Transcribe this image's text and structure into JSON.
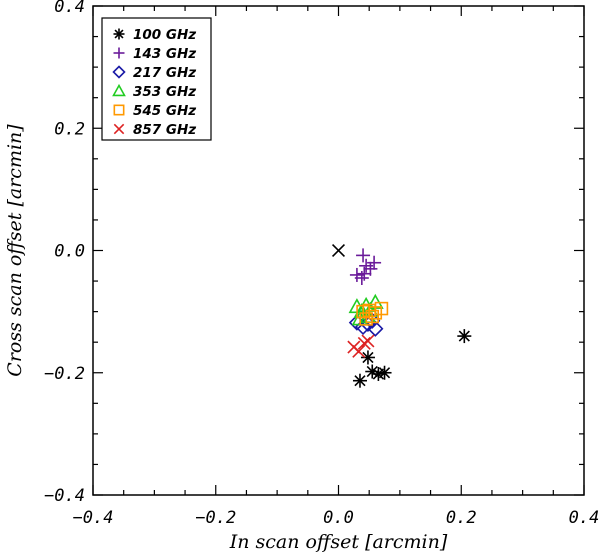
{
  "chart_data": {
    "type": "scatter",
    "title": "",
    "xlabel": "In scan offset [arcmin]",
    "ylabel": "Cross scan offset [arcmin]",
    "xlim": [
      -0.4,
      0.4
    ],
    "ylim": [
      -0.4,
      0.4
    ],
    "xticks": [
      -0.4,
      -0.2,
      0.0,
      0.2,
      0.4
    ],
    "yticks": [
      -0.4,
      -0.2,
      0.0,
      0.2,
      0.4
    ],
    "xtick_labels": [
      "−0.4",
      "−0.2",
      "0.0",
      "0.2",
      "0.4"
    ],
    "ytick_labels": [
      "−0.4",
      "−0.2",
      "0.0",
      "0.2",
      "0.4"
    ],
    "grid": false,
    "legend_position": "top-left",
    "origin_marker": {
      "symbol": "x",
      "color": "#000000",
      "x": 0.0,
      "y": 0.0
    },
    "series": [
      {
        "name": "100 GHz",
        "symbol": "asterisk",
        "color": "#000000",
        "points": [
          [
            0.035,
            -0.213
          ],
          [
            0.048,
            -0.175
          ],
          [
            0.055,
            -0.198
          ],
          [
            0.065,
            -0.202
          ],
          [
            0.075,
            -0.2
          ],
          [
            0.205,
            -0.14
          ]
        ]
      },
      {
        "name": "143 GHz",
        "symbol": "plus",
        "color": "#6a1b9a",
        "points": [
          [
            0.04,
            -0.008
          ],
          [
            0.045,
            -0.025
          ],
          [
            0.052,
            -0.03
          ],
          [
            0.058,
            -0.02
          ],
          [
            0.03,
            -0.04
          ],
          [
            0.038,
            -0.045
          ],
          [
            0.042,
            -0.038
          ]
        ]
      },
      {
        "name": "217 GHz",
        "symbol": "diamond",
        "color": "#1a1aa6",
        "points": [
          [
            0.03,
            -0.118
          ],
          [
            0.04,
            -0.125
          ],
          [
            0.048,
            -0.12
          ],
          [
            0.055,
            -0.115
          ],
          [
            0.06,
            -0.128
          ]
        ]
      },
      {
        "name": "353 GHz",
        "symbol": "triangle",
        "color": "#22cc22",
        "points": [
          [
            0.03,
            -0.092
          ],
          [
            0.038,
            -0.1
          ],
          [
            0.045,
            -0.09
          ],
          [
            0.052,
            -0.098
          ],
          [
            0.06,
            -0.085
          ],
          [
            0.035,
            -0.112
          ],
          [
            0.048,
            -0.108
          ]
        ]
      },
      {
        "name": "545 GHz",
        "symbol": "square",
        "color": "#ff9900",
        "points": [
          [
            0.04,
            -0.1
          ],
          [
            0.05,
            -0.098
          ],
          [
            0.06,
            -0.102
          ],
          [
            0.07,
            -0.095
          ],
          [
            0.045,
            -0.112
          ],
          [
            0.055,
            -0.108
          ]
        ]
      },
      {
        "name": "857 GHz",
        "symbol": "x",
        "color": "#dd2222",
        "points": [
          [
            0.025,
            -0.158
          ],
          [
            0.033,
            -0.165
          ],
          [
            0.042,
            -0.152
          ],
          [
            0.048,
            -0.148
          ]
        ]
      }
    ]
  }
}
